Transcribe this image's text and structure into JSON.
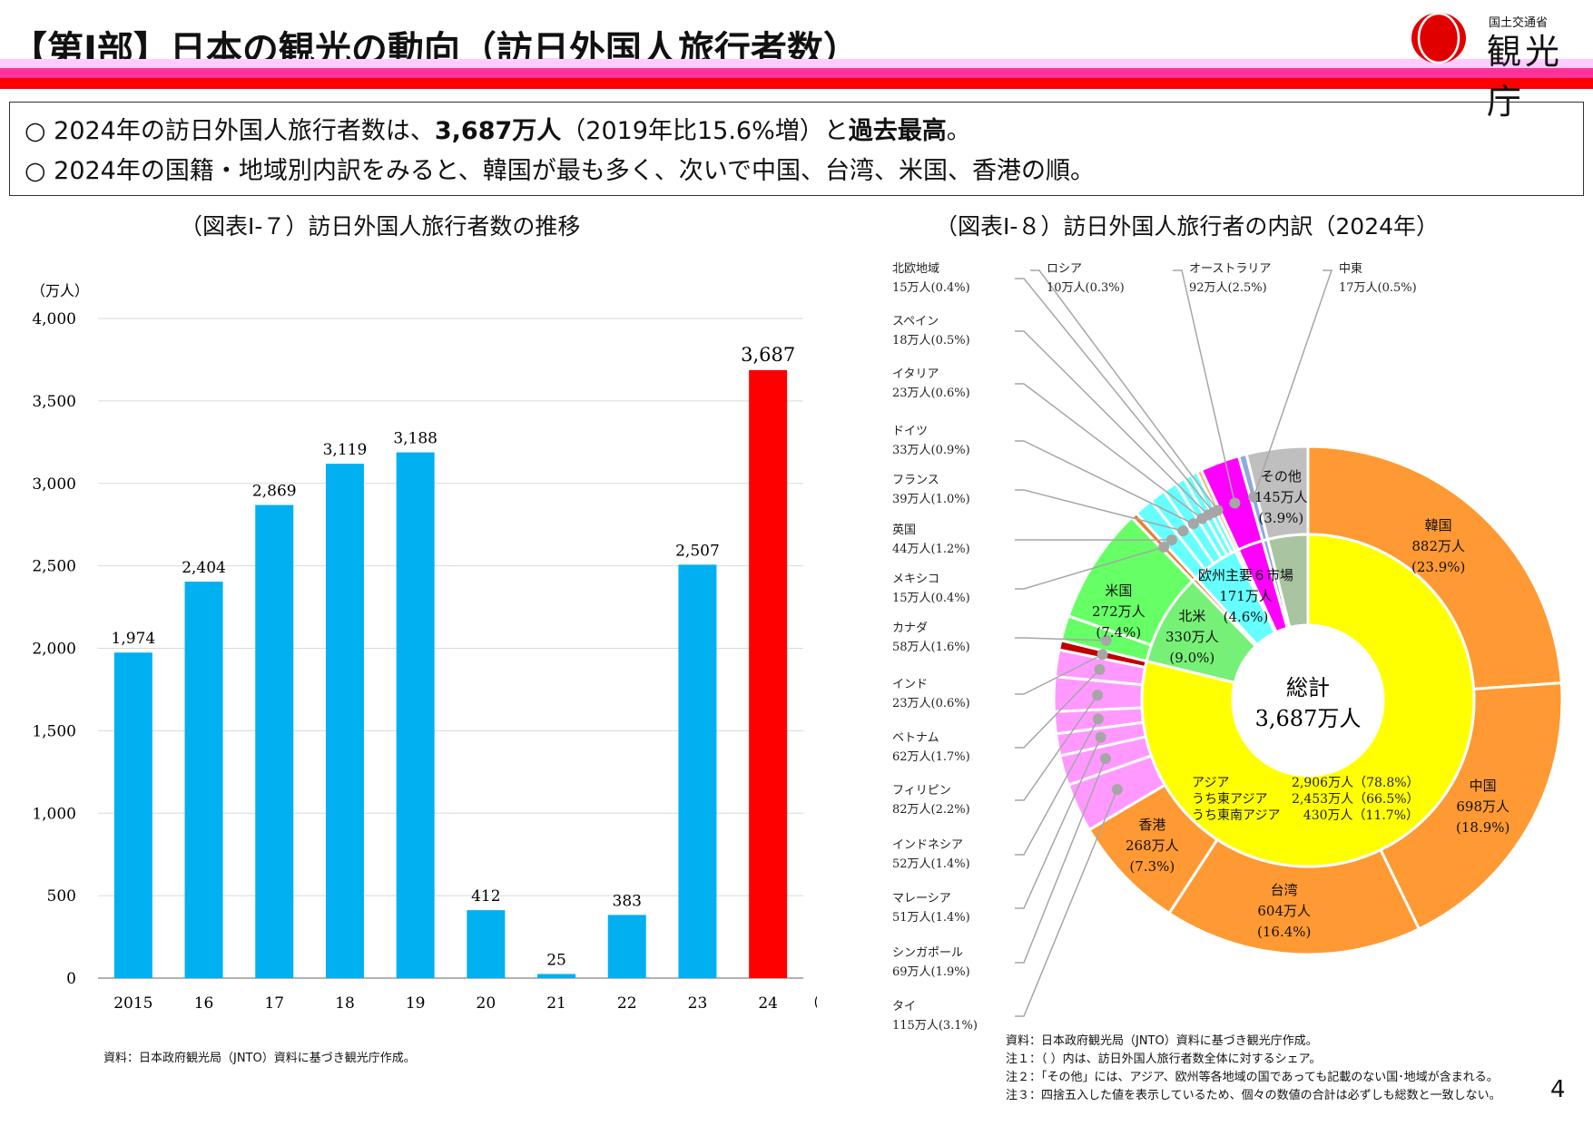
{
  "header": {
    "title": "【第Ⅰ部】日本の観光の動向（訪日外国人旅行者数）",
    "logo_sub": "国土交通省",
    "logo_main": "観光庁",
    "colors": {
      "band1": "#FFCCFF",
      "band2": "#FF3399",
      "band3": "#FF0000"
    }
  },
  "summary": {
    "line1_a": "○ 2024年の訪日外国人旅行者数は、",
    "line1_b": "3,687万人",
    "line1_c": "（2019年比15.6%増）と",
    "line1_d": "過去最高",
    "line1_e": "。",
    "line2": "○ 2024年の国籍・地域別内訳をみると、韓国が最も多く、次いで中国、台湾、米国、香港の順。"
  },
  "chart_data": [
    {
      "type": "bar",
      "title": "（図表Ⅰ-７）訪日外国人旅行者数の推移",
      "ylabel": "（万人）",
      "xlabel": "（年）",
      "categories": [
        "2015",
        "16",
        "17",
        "18",
        "19",
        "20",
        "21",
        "22",
        "23",
        "24"
      ],
      "values": [
        1974,
        2404,
        2869,
        3119,
        3188,
        412,
        25,
        383,
        2507,
        3687
      ],
      "value_labels": [
        "1,974",
        "2,404",
        "2,869",
        "3,119",
        "3,188",
        "412",
        "25",
        "383",
        "2,507",
        "3,687"
      ],
      "ylim": [
        0,
        4000
      ],
      "yticks": [
        "0",
        "500",
        "1,000",
        "1,500",
        "2,000",
        "2,500",
        "3,000",
        "3,500",
        "4,000"
      ],
      "grid": true,
      "colors": {
        "default": "#00B0F0",
        "highlight": "#FF0000"
      },
      "source": "資料：日本政府観光局（JNTO）資料に基づき観光庁作成。"
    },
    {
      "type": "pie",
      "title": "（図表Ⅰ-８）訪日外国人旅行者の内訳（2024年）",
      "center": {
        "label": "総計",
        "value": "3,687万人"
      },
      "outer": [
        {
          "key": "korea",
          "name": "韓国",
          "value": 882,
          "share": 23.9,
          "label": "882万人",
          "pct": "(23.9%)",
          "color": "#FF9933"
        },
        {
          "key": "china",
          "name": "中国",
          "value": 698,
          "share": 18.9,
          "label": "698万人",
          "pct": "(18.9%)",
          "color": "#FF9933"
        },
        {
          "key": "taiwan",
          "name": "台湾",
          "value": 604,
          "share": 16.4,
          "label": "604万人",
          "pct": "(16.4%)",
          "color": "#FF9933"
        },
        {
          "key": "hongkong",
          "name": "香港",
          "value": 268,
          "share": 7.3,
          "label": "268万人",
          "pct": "(7.3%)",
          "color": "#FF9933"
        },
        {
          "key": "thai",
          "name": "タイ",
          "value": 115,
          "share": 3.1,
          "label": "115万人(3.1%)",
          "color": "#FF99FF"
        },
        {
          "key": "singapore",
          "name": "シンガポール",
          "value": 69,
          "share": 1.9,
          "label": "69万人(1.9%)",
          "color": "#FF99FF"
        },
        {
          "key": "malaysia",
          "name": "マレーシア",
          "value": 51,
          "share": 1.4,
          "label": "51万人(1.4%)",
          "color": "#FF99FF"
        },
        {
          "key": "indonesia",
          "name": "インドネシア",
          "value": 52,
          "share": 1.4,
          "label": "52万人(1.4%)",
          "color": "#FF99FF"
        },
        {
          "key": "philippines",
          "name": "フィリピン",
          "value": 82,
          "share": 2.2,
          "label": "82万人(2.2%)",
          "color": "#FF99FF"
        },
        {
          "key": "vietnam",
          "name": "ベトナム",
          "value": 62,
          "share": 1.7,
          "label": "62万人(1.7%)",
          "color": "#FF99FF"
        },
        {
          "key": "india",
          "name": "インド",
          "value": 23,
          "share": 0.6,
          "label": "23万人(0.6%)",
          "color": "#C00000"
        },
        {
          "key": "canada",
          "name": "カナダ",
          "value": 58,
          "share": 1.6,
          "label": "58万人(1.6%)",
          "color": "#66FF66"
        },
        {
          "key": "usa",
          "name": "米国",
          "value": 272,
          "share": 7.4,
          "label": "272万人",
          "pct": "(7.4%)",
          "color": "#66FF66"
        },
        {
          "key": "mexico",
          "name": "メキシコ",
          "value": 15,
          "share": 0.4,
          "label": "15万人(0.4%)",
          "color": "#ED7D31"
        },
        {
          "key": "uk",
          "name": "英国",
          "value": 44,
          "share": 1.2,
          "label": "44万人(1.2%)",
          "color": "#66FFFF"
        },
        {
          "key": "france",
          "name": "フランス",
          "value": 39,
          "share": 1.0,
          "label": "39万人(1.0%)",
          "color": "#66FFFF"
        },
        {
          "key": "germany",
          "name": "ドイツ",
          "value": 33,
          "share": 0.9,
          "label": "33万人(0.9%)",
          "color": "#66FFFF"
        },
        {
          "key": "italy",
          "name": "イタリア",
          "value": 23,
          "share": 0.6,
          "label": "23万人(0.6%)",
          "color": "#66FFFF"
        },
        {
          "key": "spain",
          "name": "スペイン",
          "value": 18,
          "share": 0.5,
          "label": "18万人(0.5%)",
          "color": "#66FFFF"
        },
        {
          "key": "nordic",
          "name": "北欧地域",
          "value": 15,
          "share": 0.4,
          "label": "15万人(0.4%)",
          "color": "#66FFFF"
        },
        {
          "key": "russia",
          "name": "ロシア",
          "value": 10,
          "share": 0.3,
          "label": "10万人(0.3%)",
          "color": "#F4B183"
        },
        {
          "key": "australia",
          "name": "オーストラリア",
          "value": 92,
          "share": 2.5,
          "label": "92万人(2.5%)",
          "color": "#FF00FF"
        },
        {
          "key": "mideast",
          "name": "中東",
          "value": 17,
          "share": 0.5,
          "label": "17万人(0.5%)",
          "color": "#8EA9DB"
        },
        {
          "key": "other",
          "name": "その他",
          "value": 145,
          "share": 3.9,
          "label": "145万人",
          "pct": "(3.9%)",
          "color": "#BFBFBF"
        }
      ],
      "inner": [
        {
          "key": "asia",
          "name": "アジア",
          "share": 78.8,
          "color": "#FFFF00"
        },
        {
          "key": "northamerica",
          "name": "北米",
          "share": 9.0,
          "label": "330万人",
          "pct": "(9.0%)",
          "color": "#77F077"
        },
        {
          "key": "mexico",
          "share": 0.4,
          "color": "#ED7D31"
        },
        {
          "key": "europe6",
          "name": "欧州主要６市場",
          "share": 4.6,
          "label": "171万人",
          "pct": "(4.6%)",
          "color": "#66FFFF"
        },
        {
          "key": "russia",
          "share": 0.3,
          "color": "#F4B183"
        },
        {
          "key": "australia",
          "share": 2.5,
          "color": "#FF00FF"
        },
        {
          "key": "mideast",
          "share": 0.5,
          "color": "#8EA9DB"
        },
        {
          "key": "other",
          "share": 3.9,
          "color": "#A9C4A0"
        }
      ],
      "asia_breakdown": [
        {
          "name": "アジア",
          "value": "2,906万人（78.8%）"
        },
        {
          "name": "うち東アジア",
          "value": "2,453万人（66.5%）"
        },
        {
          "name": "うち東南アジア",
          "value": "430万人（11.7%）"
        }
      ],
      "notes": [
        "資料：日本政府観光局（JNTO）資料に基づき観光庁作成。",
        "注１：（ ）内は、訪日外国人旅行者数全体に対するシェア。",
        "注２：「その他」には、アジア、欧州等各地域の国であっても記載のない国･地域が含まれる。",
        "注３：四捨五入した値を表示しているため、個々の数値の合計は必ずしも総数と一致しない。"
      ]
    }
  ],
  "page_number": "4"
}
